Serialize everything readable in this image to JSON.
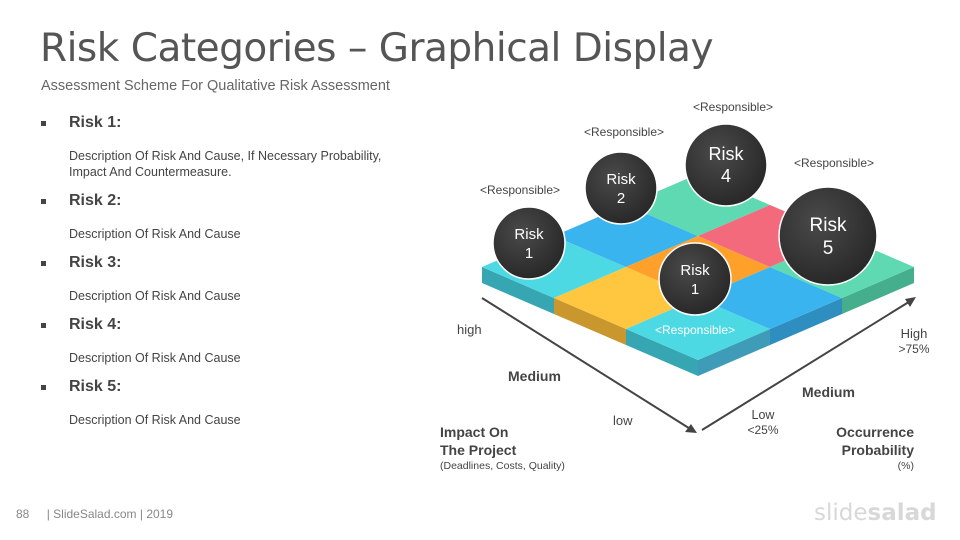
{
  "slide": {
    "title": "Risk Categories – Graphical Display",
    "subtitle": "Assessment Scheme For Qualitative Risk Assessment"
  },
  "risks": [
    {
      "label": "Risk 1:",
      "description": "Description Of Risk And Cause, If Necessary Probability, Impact And Countermeasure."
    },
    {
      "label": "Risk 2:",
      "description": "Description Of Risk And Cause"
    },
    {
      "label": "Risk 3:",
      "description": "Description Of Risk And Cause"
    },
    {
      "label": "Risk 4:",
      "description": "Description Of Risk And Cause"
    },
    {
      "label": "Risk 5:",
      "description": "Description Of Risk And Cause"
    }
  ],
  "diagram": {
    "bubbles": [
      {
        "line1": "Risk",
        "line2": "1",
        "tag": "<Responsible>"
      },
      {
        "line1": "Risk",
        "line2": "2",
        "tag": "<Responsible>"
      },
      {
        "line1": "Risk",
        "line2": "4",
        "tag": "<Responsible>"
      },
      {
        "line1": "Risk",
        "line2": "5",
        "tag": "<Responsible>"
      },
      {
        "line1": "Risk",
        "line2": "1",
        "tag": "<Responsible>"
      }
    ],
    "impact_axis": {
      "high": "high",
      "medium": "Medium",
      "low": "low",
      "title_line1": "Impact On",
      "title_line2": "The Project",
      "note": "(Deadlines, Costs, Quality)"
    },
    "probability_axis": {
      "high": "High",
      "high_pct": ">75%",
      "medium": "Medium",
      "low": "Low",
      "low_pct": "<25%",
      "title_line1": "Occurrence",
      "title_line2": "Probability",
      "note": "(%)"
    },
    "colors": {
      "turquoise": "#4DD9E3",
      "blue": "#3AB4EE",
      "yellow": "#FFC640",
      "orange": "#FFA02A",
      "green": "#5ED9B2",
      "red": "#F26A7C",
      "bubble": "#333333"
    }
  },
  "footer": {
    "page_number": "88",
    "credit": "| SlideSalad.com | 2019",
    "brand_a": "slide",
    "brand_b": "salad"
  }
}
